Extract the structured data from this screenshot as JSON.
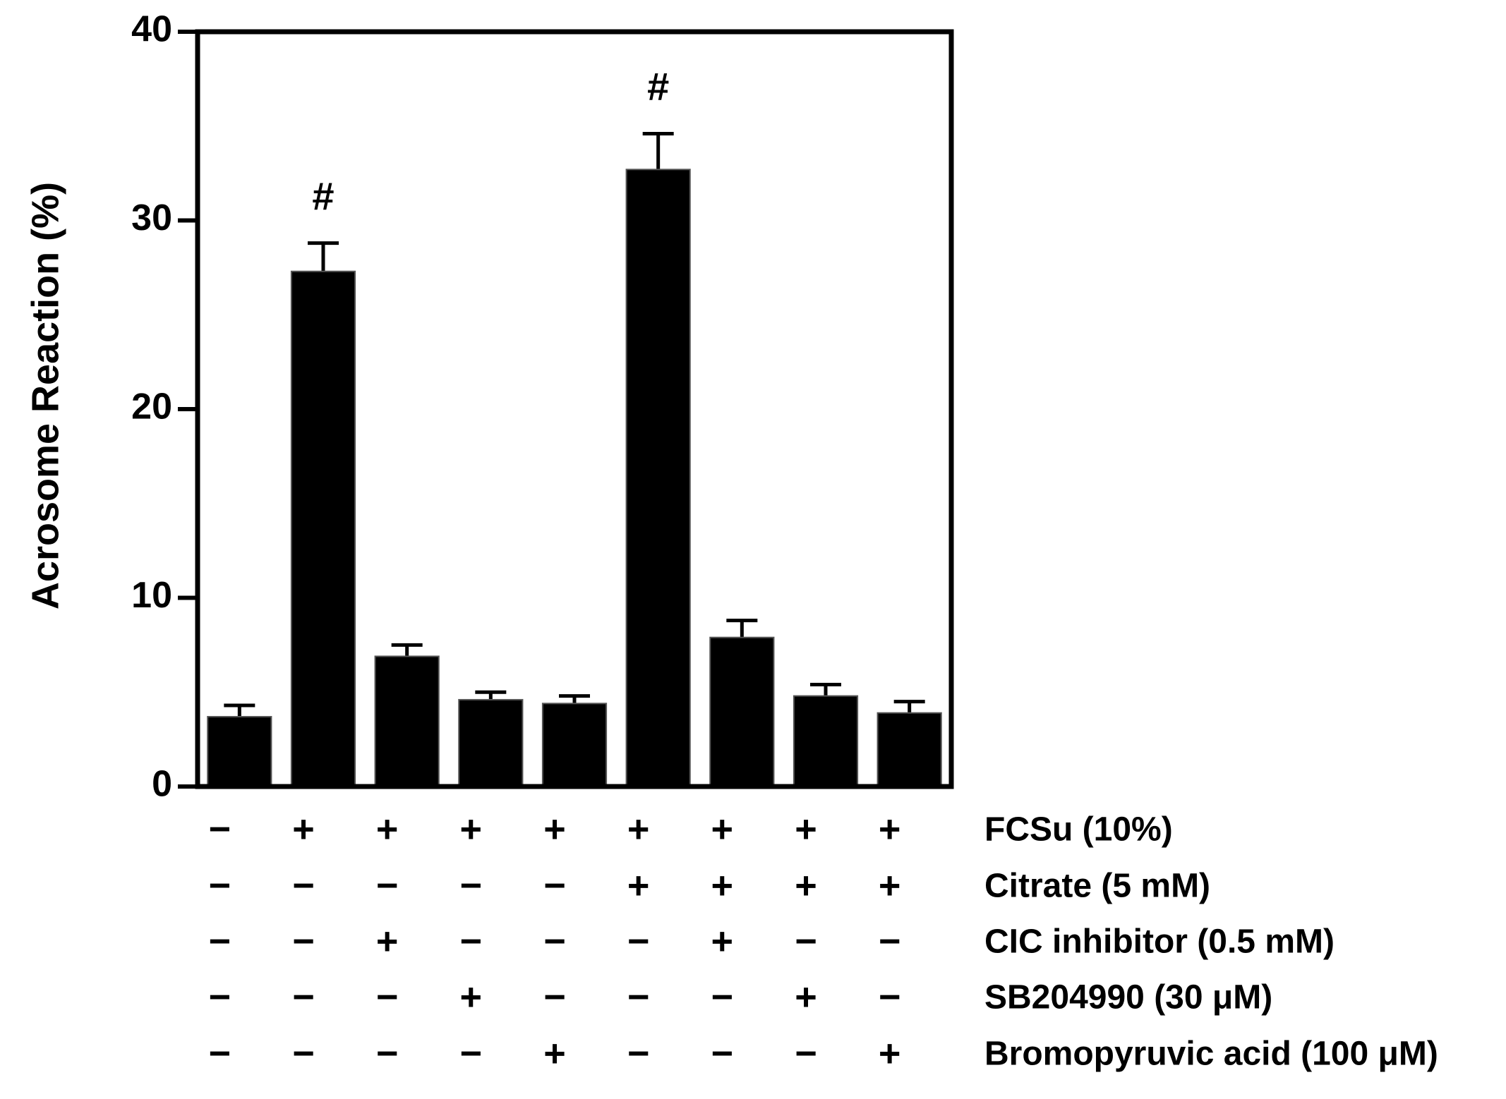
{
  "chart_data": {
    "type": "bar",
    "y_label": "Acrosome Reaction (%)",
    "values": [
      3.7,
      27.3,
      6.9,
      4.6,
      4.4,
      32.7,
      7.9,
      4.8,
      3.9
    ],
    "errors": [
      0.6,
      1.5,
      0.6,
      0.4,
      0.4,
      1.9,
      0.9,
      0.6,
      0.6
    ],
    "annotations": [
      null,
      "#",
      null,
      null,
      null,
      "#",
      null,
      null,
      null
    ],
    "color": "#000000",
    "ylim": [
      0,
      40
    ],
    "yticks": [
      0,
      10,
      20,
      30,
      40
    ],
    "treatments": [
      {
        "label": "FCSu (10%)",
        "signs": [
          "−",
          "+",
          "+",
          "+",
          "+",
          "+",
          "+",
          "+",
          "+"
        ]
      },
      {
        "label": "Citrate (5 mM)",
        "signs": [
          "−",
          "−",
          "−",
          "−",
          "−",
          "+",
          "+",
          "+",
          "+"
        ]
      },
      {
        "label": "CIC inhibitor (0.5 mM)",
        "signs": [
          "−",
          "−",
          "+",
          "−",
          "−",
          "−",
          "+",
          "−",
          "−"
        ]
      },
      {
        "label": "SB204990 (30 μM)",
        "signs": [
          "−",
          "−",
          "−",
          "+",
          "−",
          "−",
          "−",
          "+",
          "−"
        ]
      },
      {
        "label": "Bromopyruvic acid (100 μM)",
        "signs": [
          "−",
          "−",
          "−",
          "−",
          "+",
          "−",
          "−",
          "−",
          "+"
        ]
      }
    ]
  }
}
